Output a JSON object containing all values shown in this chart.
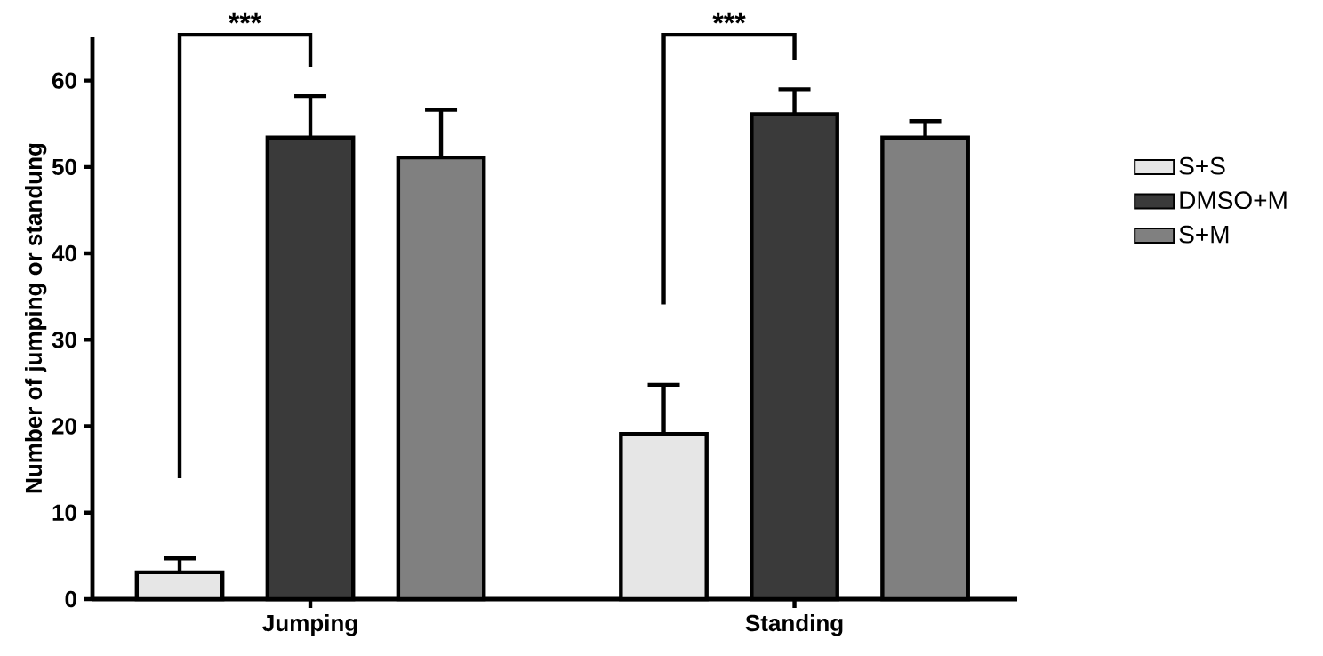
{
  "chart_data": {
    "type": "bar",
    "ylabel": "Number of jumping or standung",
    "categories": [
      "Jumping",
      "Standing"
    ],
    "series": [
      {
        "name": "S+S",
        "color": "#e6e6e6",
        "values": [
          3.1,
          19.1
        ],
        "errors": [
          1.6,
          5.7
        ]
      },
      {
        "name": "DMSO+M",
        "color": "#3a3a3a",
        "values": [
          53.4,
          56.1
        ],
        "errors": [
          4.8,
          2.9
        ]
      },
      {
        "name": "S+M",
        "color": "#808080",
        "values": [
          51.1,
          53.4
        ],
        "errors": [
          5.5,
          1.9
        ]
      }
    ],
    "ylim": [
      0,
      65
    ],
    "yticks": [
      0,
      10,
      20,
      30,
      40,
      50,
      60
    ],
    "legend": "right",
    "grid": false,
    "annotations": [
      "***",
      "***"
    ]
  }
}
